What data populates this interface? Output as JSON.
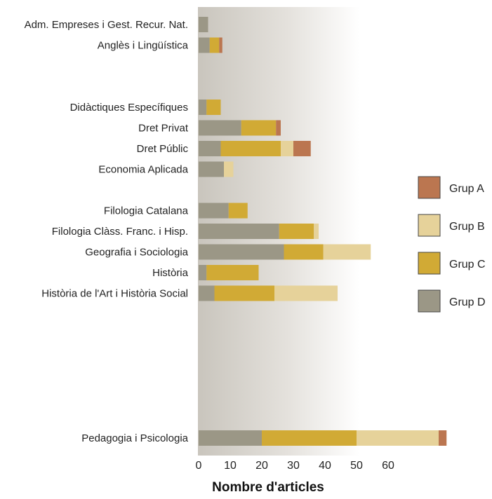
{
  "chart_data": {
    "type": "bar",
    "orientation": "horizontal",
    "stacked": true,
    "xlabel": "Nombre d'articles",
    "ylabel": "",
    "xlim": [
      0,
      78
    ],
    "xticks": [
      0,
      10,
      20,
      30,
      40,
      50,
      60
    ],
    "legend_position": "right",
    "categories": [
      "Adm. Empreses i Gest. Recur. Nat.",
      "Anglès i Lingüística",
      "",
      "",
      "Didàctiques Específiques",
      "Dret Privat",
      "Dret Públic",
      "Economia Aplicada",
      "",
      "Filologia Catalana",
      "Filologia Clàss. Franc. i Hisp.",
      "Geografia i Sociologia",
      "Història",
      "Història de l'Art i Història Social",
      "",
      "",
      "",
      "",
      "",
      "",
      "Pedagogia i Psicologia"
    ],
    "series": [
      {
        "name": "Grup D",
        "color": "#9b9786",
        "values": [
          3,
          3.5,
          0,
          0,
          2.5,
          13.5,
          7,
          8,
          0,
          9.5,
          25.5,
          27,
          2.5,
          5,
          0,
          0,
          0,
          0,
          0,
          0,
          20
        ]
      },
      {
        "name": "Grup C",
        "color": "#d1aa35",
        "values": [
          0,
          3,
          0,
          0,
          4.5,
          11,
          19,
          0,
          0,
          6,
          11,
          12.5,
          16.5,
          19,
          0,
          0,
          0,
          0,
          0,
          0,
          30
        ]
      },
      {
        "name": "Grup B",
        "color": "#e6d29a",
        "values": [
          0,
          0,
          0,
          0,
          0,
          0,
          4,
          3,
          0,
          0,
          1.5,
          15,
          0,
          20,
          0,
          0,
          0,
          0,
          0,
          0,
          26
        ]
      },
      {
        "name": "Grup A",
        "color": "#bb7650",
        "values": [
          0,
          1,
          0,
          0,
          0,
          1.5,
          5.5,
          0,
          0,
          0,
          0,
          0,
          0,
          0,
          0,
          0,
          0,
          0,
          0,
          0,
          2.5
        ]
      }
    ],
    "legend_order": [
      "Grup A",
      "Grup B",
      "Grup C",
      "Grup D"
    ]
  }
}
